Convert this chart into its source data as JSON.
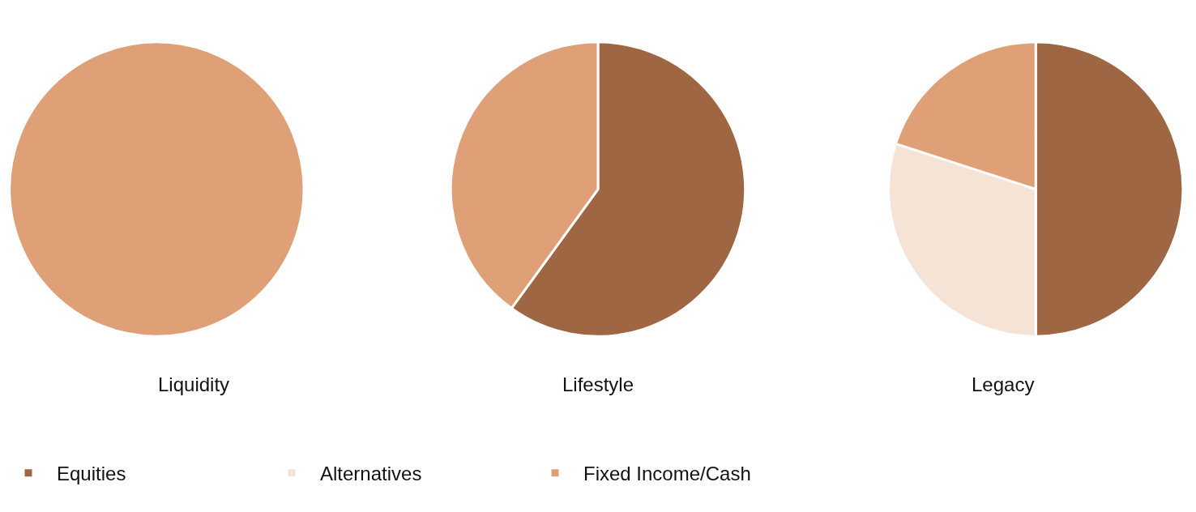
{
  "chart_data": [
    {
      "type": "pie",
      "title": "Liquidity",
      "categories": [
        null
      ],
      "values": [
        100
      ],
      "colors": [
        "#dfa078"
      ]
    },
    {
      "type": "pie",
      "title": "Lifestyle",
      "categories": [
        null,
        null
      ],
      "values": [
        60,
        40
      ],
      "colors": [
        "#9e6642",
        "#dfa078"
      ]
    },
    {
      "type": "pie",
      "title": "Legacy",
      "categories": [
        "Equities",
        "Alternatives",
        "Fixed Income/Cash"
      ],
      "values": [
        50,
        30,
        20
      ],
      "colors": [
        "#9e6642",
        "#f5e3d6",
        "#dfa078"
      ],
      "legend": "bottom"
    }
  ]
}
